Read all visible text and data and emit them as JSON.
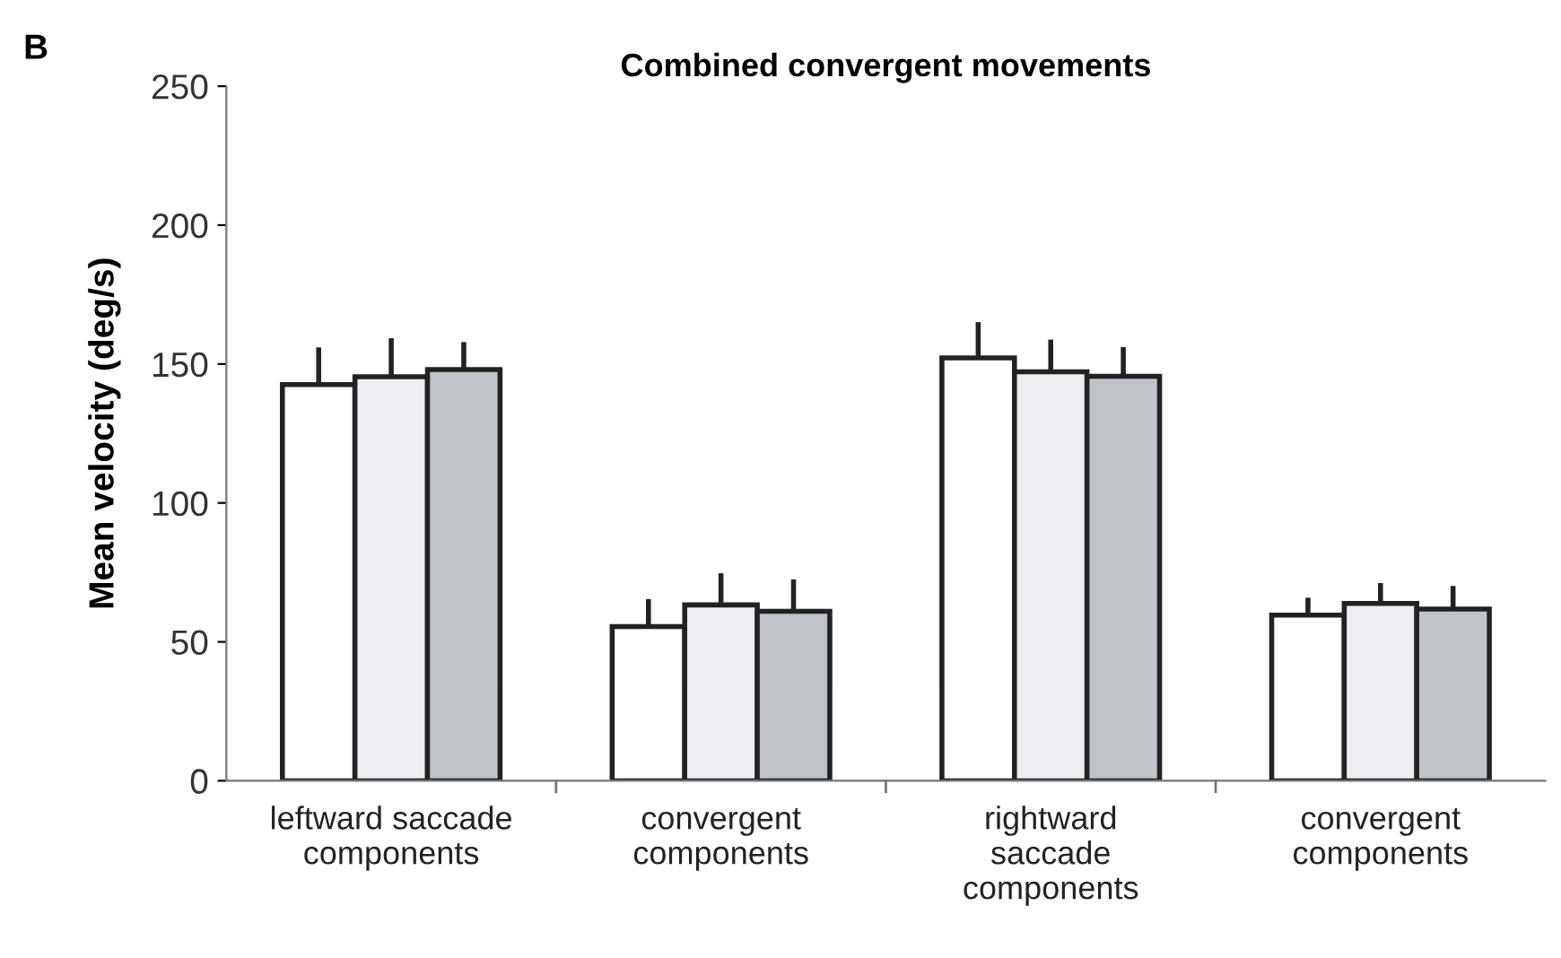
{
  "chart_data": {
    "type": "bar",
    "title": "Combined convergent movements",
    "ylabel": "Mean velocity (deg/s)",
    "annotations": [
      "B"
    ],
    "categories": [
      "leftward saccade\ncomponents",
      "convergent\ncomponents",
      "rightward\nsaccade\ncomponents",
      "convergent\ncomponents"
    ],
    "series": [
      {
        "color": "#ffffff",
        "values": [
          142.6,
          55.5,
          152.2,
          59.6
        ],
        "errors": [
          12.5,
          9,
          12,
          5.4
        ]
      },
      {
        "color": "#eeeef2",
        "values": [
          145.4,
          63.3,
          147.2,
          63.8
        ],
        "errors": [
          13,
          10.5,
          10.7,
          6.5
        ]
      },
      {
        "color": "#c0c3c8",
        "values": [
          148,
          61,
          145.6,
          61.8
        ],
        "errors": [
          9,
          10.6,
          9.6,
          7.4
        ]
      }
    ],
    "ylim": [
      0,
      250
    ],
    "yticks": [
      0,
      50,
      100,
      150,
      200,
      250
    ],
    "grid": false,
    "legend": false
  }
}
